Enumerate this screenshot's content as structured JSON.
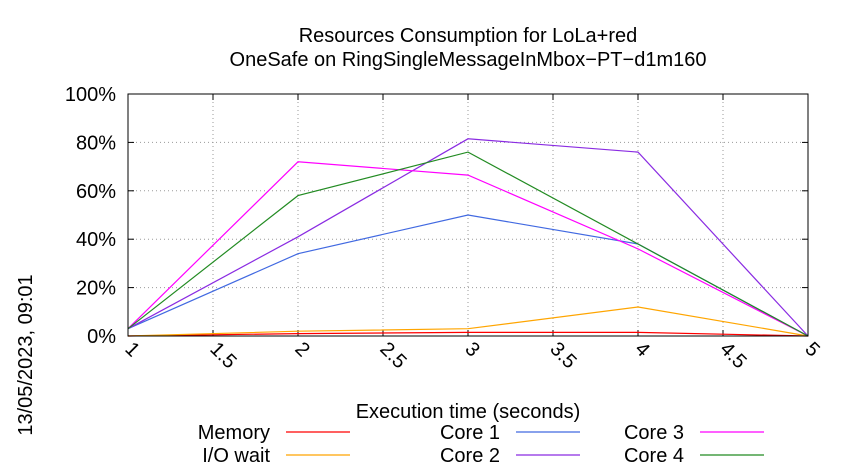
{
  "timestamp": "13/05/2023, 09:01",
  "chart_data": {
    "type": "line",
    "title_line1": "Resources Consumption for LoLa+red",
    "title_line2": "OneSafe on RingSingleMessageInMbox−PT−d1m160",
    "xlabel": "Execution time (seconds)",
    "ylabel": "",
    "xlim": [
      1,
      5
    ],
    "ylim": [
      0,
      100
    ],
    "x_ticks": [
      "1",
      "1.5",
      "2",
      "2.5",
      "3",
      "3.5",
      "4",
      "4.5",
      "5"
    ],
    "y_ticks": [
      "0%",
      "20%",
      "40%",
      "60%",
      "80%",
      "100%"
    ],
    "grid": true,
    "legend_position": "bottom",
    "x": [
      1,
      2,
      3,
      4,
      5
    ],
    "series": [
      {
        "name": "Memory",
        "color": "#ff0000",
        "values": [
          0,
          1,
          1.5,
          1.5,
          0
        ]
      },
      {
        "name": "I/O wait",
        "color": "#ffa500",
        "values": [
          0,
          2,
          3,
          12,
          0
        ]
      },
      {
        "name": "Core 1",
        "color": "#4169e1",
        "values": [
          3,
          34,
          50,
          38,
          0
        ]
      },
      {
        "name": "Core 2",
        "color": "#8a2be2",
        "values": [
          3,
          41,
          81.5,
          76,
          0
        ]
      },
      {
        "name": "Core 3",
        "color": "#ff00ff",
        "values": [
          3,
          72,
          66.5,
          36,
          0
        ]
      },
      {
        "name": "Core 4",
        "color": "#228b22",
        "values": [
          3,
          58,
          76,
          38,
          0
        ]
      }
    ]
  }
}
